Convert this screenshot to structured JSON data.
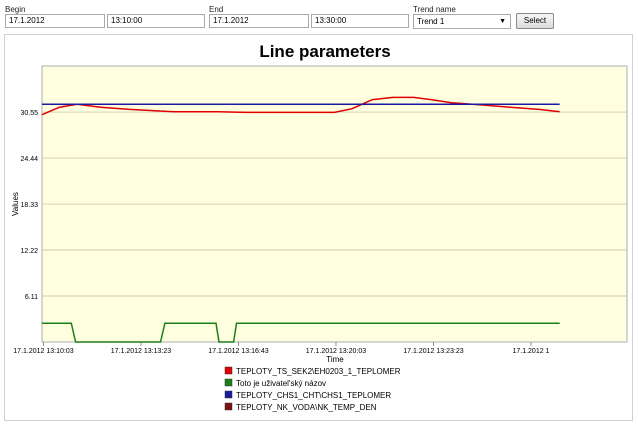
{
  "form": {
    "begin_label": "Begin",
    "begin_date": "17.1.2012",
    "begin_time": "13:10:00",
    "end_label": "End",
    "end_date": "17.1.2012",
    "end_time": "13:30:00",
    "trend_label": "Trend name",
    "trend_value": "Trend 1",
    "select_label": "Select"
  },
  "chart_data": {
    "type": "line",
    "title": "Line parameters",
    "xlabel": "Time",
    "ylabel": "Values",
    "ylim": [
      0,
      36.67
    ],
    "xlim_minutes": [
      0,
      20
    ],
    "y_ticks": [
      "6.11",
      "12.22",
      "18.33",
      "24.44",
      "30.55"
    ],
    "y_tick_values": [
      6.11,
      12.22,
      18.33,
      24.44,
      30.55
    ],
    "x_ticks": [
      "17.1.2012 13:10:03",
      "17.1.2012 13:13:23",
      "17.1.2012 13:16:43",
      "17.1.2012 13:20:03",
      "17.1.2012 13:23:23",
      "17.1.2012 1"
    ],
    "x_tick_minutes": [
      0.05,
      3.383,
      6.717,
      10.05,
      13.383,
      16.717
    ],
    "background": "#ffffe0",
    "grid": true,
    "legend_position": "bottom",
    "series": [
      {
        "name": "TEPLOTY_TS_SEK2\\EH0203_1_TEPLOMER",
        "color": "#e00000",
        "x": [
          0,
          0.6,
          1.2,
          2.0,
          3.0,
          4.5,
          6.0,
          7.0,
          8.0,
          9.0,
          10.0,
          10.6,
          11.3,
          12.0,
          12.7,
          13.3,
          14.0,
          15.0,
          16.0,
          17.0,
          17.7
        ],
        "y": [
          30.2,
          31.2,
          31.6,
          31.2,
          30.9,
          30.6,
          30.6,
          30.5,
          30.5,
          30.5,
          30.5,
          31.0,
          32.2,
          32.5,
          32.5,
          32.2,
          31.8,
          31.5,
          31.2,
          30.9,
          30.6
        ]
      },
      {
        "name": "Toto je uživatel'ský názov",
        "color": "#1a7f1a",
        "x": [
          0,
          1.0,
          1.15,
          4.05,
          4.2,
          5.95,
          6.05,
          6.55,
          6.65,
          17.7
        ],
        "y": [
          2.5,
          2.5,
          0,
          0,
          2.5,
          2.5,
          0,
          0,
          2.5,
          2.5
        ]
      },
      {
        "name": "TEPLOTY_CHS1_CHT\\CHS1_TEPLOMER",
        "color": "#1a1aa0",
        "x": [
          0,
          17.7
        ],
        "y": [
          31.6,
          31.6
        ]
      },
      {
        "name": "TEPLOTY_NK_VODA\\NK_TEMP_DEN",
        "color": "#7a1010",
        "x": [],
        "y": []
      }
    ]
  }
}
